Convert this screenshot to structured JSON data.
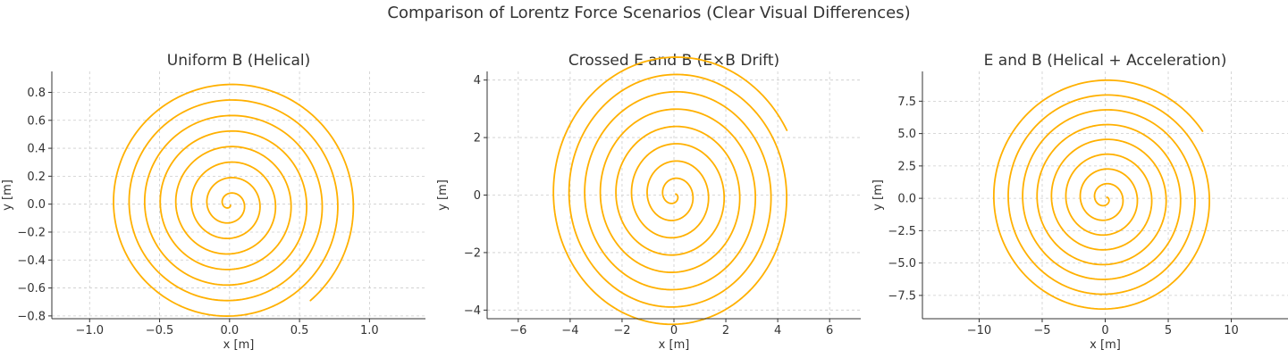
{
  "figure_title": "Comparison of Lorentz Force Scenarios (Clear Visual Differences)",
  "chart_data": [
    {
      "type": "line",
      "title": "Uniform B (Helical)",
      "xlabel": "x [m]",
      "ylabel": "y [m]",
      "xlim": [
        -1.27,
        1.4
      ],
      "ylim": [
        -0.82,
        0.95
      ],
      "xticks": [
        -1.0,
        -0.5,
        0.0,
        0.5,
        1.0
      ],
      "xtick_labels": [
        "−1.0",
        "−0.5",
        "0.0",
        "0.5",
        "1.0"
      ],
      "yticks": [
        -0.8,
        -0.6,
        -0.4,
        -0.2,
        0.0,
        0.2,
        0.4,
        0.6,
        0.8
      ],
      "ytick_labels": [
        "−0.8",
        "−0.6",
        "−0.4",
        "−0.2",
        "0.0",
        "0.2",
        "0.4",
        "0.6",
        "0.8"
      ],
      "grid": true,
      "color": "#FFB000",
      "spiral": {
        "center": [
          0.0,
          0.0
        ],
        "start_radius": 0.01,
        "end_radius": 0.9,
        "turns": 8,
        "end_point": [
          0.62,
          -0.74
        ]
      }
    },
    {
      "type": "line",
      "title": "Crossed E and B (E×B Drift)",
      "xlabel": "x [m]",
      "ylabel": "y [m]",
      "xlim": [
        -7.2,
        7.2
      ],
      "ylim": [
        -4.3,
        4.3
      ],
      "xticks": [
        -6,
        -4,
        -2,
        0,
        2,
        4,
        6
      ],
      "xtick_labels": [
        "−6",
        "−4",
        "−2",
        "0",
        "2",
        "4",
        "6"
      ],
      "yticks": [
        -4,
        -2,
        0,
        2,
        4
      ],
      "ytick_labels": [
        "−4",
        "−2",
        "0",
        "2",
        "4"
      ],
      "grid": true,
      "color": "#FFB000",
      "spiral": {
        "center": [
          0.0,
          0.0
        ],
        "start_radius": 0.08,
        "end_radius": 4.9,
        "turns": 8,
        "end_point": [
          4.35,
          2.25
        ]
      }
    },
    {
      "type": "line",
      "title": "E and B (Helical + Acceleration)",
      "xlabel": "x [m]",
      "ylabel": "y [m]",
      "xlim": [
        -14.5,
        14.5
      ],
      "ylim": [
        -9.3,
        9.8
      ],
      "xticks": [
        -10,
        -5,
        0,
        5,
        10
      ],
      "xtick_labels": [
        "−10",
        "−5",
        "0",
        "5",
        "10"
      ],
      "yticks": [
        -7.5,
        -5.0,
        -2.5,
        0.0,
        2.5,
        5.0,
        7.5
      ],
      "ytick_labels": [
        "−7.5",
        "−5.0",
        "−2.5",
        "0.0",
        "2.5",
        "5.0",
        "7.5"
      ],
      "grid": true,
      "color": "#FFB000",
      "spiral": {
        "center": [
          0.0,
          0.0
        ],
        "start_radius": 0.15,
        "end_radius": 9.3,
        "turns": 8,
        "end_point": [
          7.9,
          5.3
        ]
      }
    }
  ]
}
